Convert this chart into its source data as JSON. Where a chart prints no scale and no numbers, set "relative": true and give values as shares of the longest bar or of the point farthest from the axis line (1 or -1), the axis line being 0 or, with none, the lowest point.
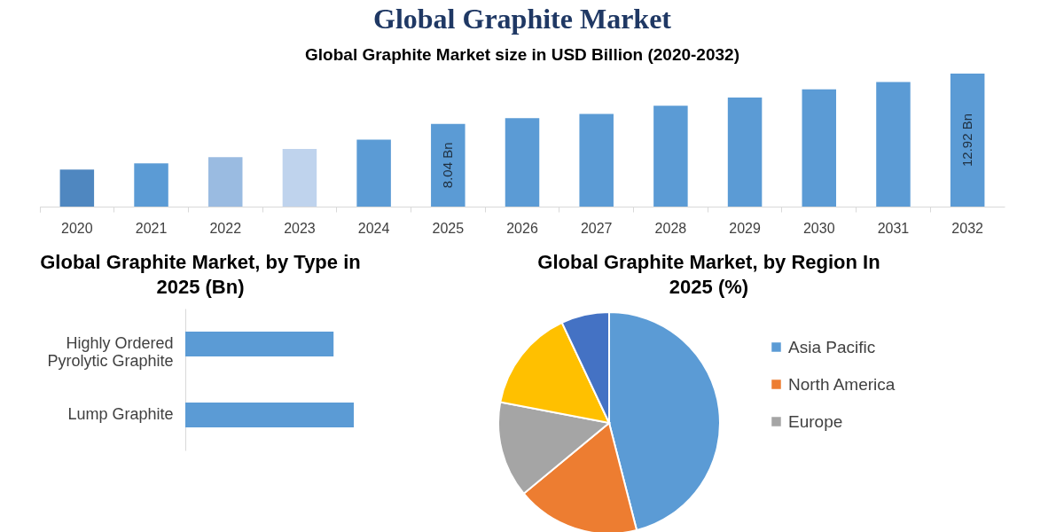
{
  "chart_data": [
    {
      "type": "bar",
      "title": "Global Graphite Market",
      "subtitle": "Global Graphite Market size in USD Billion (2020-2032)",
      "categories": [
        "2020",
        "2021",
        "2022",
        "2023",
        "2024",
        "2025",
        "2026",
        "2027",
        "2028",
        "2029",
        "2030",
        "2031",
        "2032"
      ],
      "values": [
        3.6,
        4.2,
        4.8,
        5.6,
        6.5,
        8.04,
        8.6,
        9.0,
        9.8,
        10.6,
        11.4,
        12.1,
        12.92
      ],
      "colors": [
        "#4f87c0",
        "#5b9bd5",
        "#9abbe1",
        "#bfd3ed",
        "#5b9bd5",
        "#5b9bd5",
        "#5b9bd5",
        "#5b9bd5",
        "#5b9bd5",
        "#5b9bd5",
        "#5b9bd5",
        "#5b9bd5",
        "#5b9bd5"
      ],
      "value_labels": [
        null,
        null,
        null,
        null,
        null,
        "8.04 Bn",
        null,
        null,
        null,
        null,
        null,
        null,
        "12.92 Bn"
      ]
    },
    {
      "type": "bar",
      "orientation": "horizontal",
      "relative": true,
      "title": "Global Graphite Market, by Type in 2025 (Bn)",
      "categories": [
        "Highly Ordered Pyrolytic Graphite",
        "Lump Graphite"
      ],
      "values": [
        0.88,
        1
      ],
      "color": "#5b9bd5"
    },
    {
      "type": "pie",
      "title": "Global Graphite Market, by Region In 2025 (%)",
      "categories": [
        "Asia Pacific",
        "North America",
        "Europe",
        null,
        null
      ],
      "values": [
        46,
        18,
        14,
        15,
        7
      ],
      "colors": [
        "#5b9bd5",
        "#ed7d31",
        "#a5a5a5",
        "#ffc000",
        "#4472c4"
      ],
      "legend": "right"
    }
  ]
}
